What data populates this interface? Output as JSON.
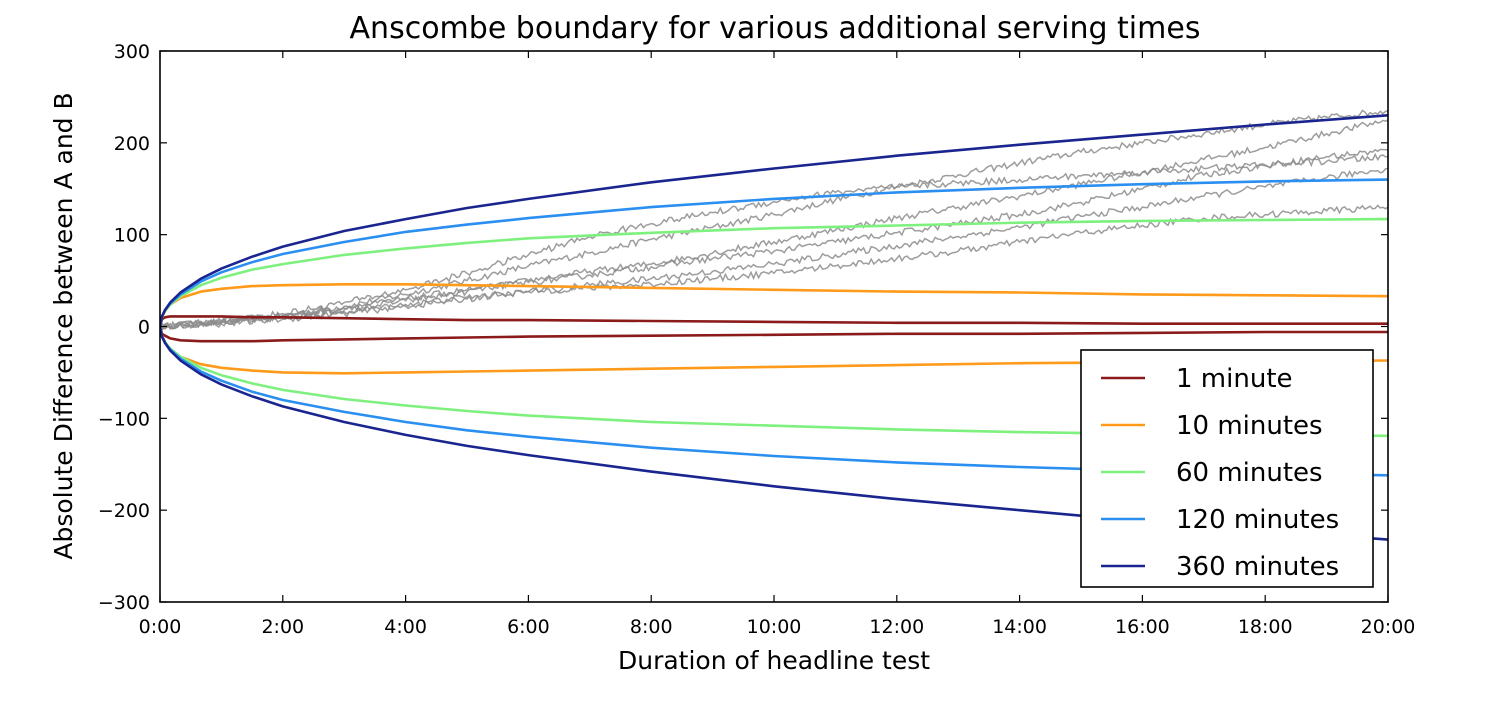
{
  "chart_data": {
    "type": "line",
    "title": "Anscombe boundary for various additional serving times",
    "xlabel": "Duration of headline test",
    "ylabel": "Absolute Difference between A and B",
    "x_unit": "minutes",
    "xlim": [
      0,
      1200
    ],
    "ylim": [
      -300,
      300
    ],
    "x_ticks": [
      0,
      120,
      240,
      360,
      480,
      600,
      720,
      840,
      960,
      1080,
      1200
    ],
    "x_tick_labels": [
      "0:00",
      "2:00",
      "4:00",
      "6:00",
      "8:00",
      "10:00",
      "12:00",
      "14:00",
      "16:00",
      "18:00",
      "20:00"
    ],
    "y_ticks": [
      -300,
      -200,
      -100,
      0,
      100,
      200,
      300
    ],
    "y_tick_labels": [
      "−300",
      "−200",
      "−100",
      "0",
      "100",
      "200",
      "300"
    ],
    "grid": false,
    "legend_position": "bottom-right",
    "x": [
      0,
      2,
      5,
      10,
      20,
      40,
      60,
      90,
      120,
      180,
      240,
      300,
      360,
      480,
      600,
      720,
      840,
      960,
      1080,
      1200
    ],
    "series": [
      {
        "name": "1 minute",
        "color": "#8b1a1a",
        "upper": [
          0,
          8,
          10,
          11,
          11,
          11,
          11,
          10,
          10,
          9,
          8,
          7,
          7,
          6,
          5,
          4,
          4,
          3,
          3,
          3
        ],
        "lower": [
          0,
          -8,
          -10,
          -13,
          -15,
          -16,
          -16,
          -16,
          -15,
          -14,
          -13,
          -12,
          -11,
          -10,
          -9,
          -8,
          -8,
          -7,
          -6,
          -6
        ]
      },
      {
        "name": "10 minutes",
        "color": "#ff9a1a",
        "upper": [
          0,
          10,
          17,
          24,
          31,
          38,
          41,
          44,
          45,
          46,
          46,
          45,
          44,
          42,
          40,
          38,
          37,
          35,
          34,
          33
        ],
        "lower": [
          0,
          -10,
          -17,
          -25,
          -33,
          -41,
          -45,
          -48,
          -50,
          -51,
          -50,
          -49,
          -48,
          -46,
          -44,
          -42,
          -40,
          -39,
          -38,
          -37
        ]
      },
      {
        "name": "60 minutes",
        "color": "#7ef07e",
        "upper": [
          0,
          11,
          17,
          24,
          33,
          45,
          53,
          62,
          68,
          78,
          85,
          91,
          96,
          102,
          107,
          110,
          113,
          115,
          116,
          117
        ],
        "lower": [
          0,
          -11,
          -17,
          -24,
          -33,
          -45,
          -53,
          -62,
          -69,
          -79,
          -86,
          -92,
          -97,
          -104,
          -108,
          -112,
          -115,
          -117,
          -118,
          -119
        ]
      },
      {
        "name": "120 minutes",
        "color": "#2a8ff0",
        "upper": [
          0,
          11,
          18,
          25,
          35,
          49,
          59,
          70,
          79,
          92,
          103,
          111,
          118,
          130,
          139,
          146,
          151,
          155,
          158,
          160
        ],
        "lower": [
          0,
          -11,
          -18,
          -25,
          -35,
          -49,
          -59,
          -71,
          -80,
          -93,
          -104,
          -113,
          -120,
          -132,
          -141,
          -148,
          -153,
          -157,
          -160,
          -162
        ]
      },
      {
        "name": "360 minutes",
        "color": "#1a2590",
        "upper": [
          0,
          11,
          18,
          26,
          37,
          52,
          63,
          76,
          87,
          104,
          117,
          129,
          139,
          157,
          172,
          186,
          198,
          209,
          220,
          230
        ],
        "lower": [
          0,
          -11,
          -18,
          -26,
          -37,
          -52,
          -63,
          -76,
          -87,
          -104,
          -118,
          -130,
          -140,
          -158,
          -174,
          -188,
          -200,
          -212,
          -222,
          -232
        ]
      }
    ],
    "random_walks": {
      "color": "#8c8c8c",
      "walks": [
        {
          "x": [
            0,
            60,
            120,
            180,
            240,
            300,
            360,
            420,
            480,
            540,
            600,
            660,
            720,
            780,
            840,
            900,
            960,
            1020,
            1080,
            1140,
            1200
          ],
          "y": [
            0,
            6,
            12,
            22,
            35,
            50,
            66,
            80,
            95,
            108,
            122,
            138,
            152,
            165,
            178,
            190,
            200,
            210,
            220,
            228,
            235
          ]
        },
        {
          "x": [
            0,
            60,
            120,
            180,
            240,
            300,
            360,
            420,
            480,
            540,
            600,
            660,
            720,
            780,
            840,
            900,
            960,
            1020,
            1080,
            1140,
            1200
          ],
          "y": [
            0,
            4,
            10,
            18,
            28,
            38,
            50,
            60,
            68,
            80,
            92,
            105,
            118,
            130,
            142,
            155,
            168,
            182,
            195,
            210,
            225
          ]
        },
        {
          "x": [
            0,
            60,
            120,
            180,
            240,
            300,
            360,
            420,
            480,
            540,
            600,
            660,
            720,
            780,
            840,
            900,
            960,
            1020,
            1080,
            1140,
            1200
          ],
          "y": [
            0,
            5,
            12,
            20,
            30,
            40,
            48,
            56,
            65,
            74,
            82,
            92,
            102,
            112,
            122,
            135,
            150,
            165,
            175,
            185,
            192
          ]
        },
        {
          "x": [
            0,
            60,
            120,
            180,
            240,
            300,
            360,
            420,
            480,
            540,
            600,
            660,
            720,
            780,
            840,
            900,
            960,
            1020,
            1080,
            1140,
            1200
          ],
          "y": [
            0,
            3,
            8,
            14,
            22,
            30,
            38,
            45,
            52,
            60,
            68,
            78,
            88,
            98,
            108,
            120,
            130,
            142,
            152,
            162,
            172
          ]
        },
        {
          "x": [
            0,
            60,
            120,
            180,
            240,
            300,
            360,
            420,
            480,
            540,
            600,
            660,
            720,
            780,
            840,
            900,
            960,
            1020,
            1080,
            1140,
            1200
          ],
          "y": [
            0,
            5,
            10,
            16,
            24,
            32,
            38,
            42,
            46,
            52,
            58,
            66,
            74,
            82,
            92,
            102,
            110,
            118,
            122,
            126,
            130
          ]
        },
        {
          "x": [
            0,
            60,
            120,
            180,
            240,
            300,
            360,
            420,
            480,
            540,
            600,
            660,
            720,
            780,
            840,
            900,
            960,
            1020,
            1080,
            1140,
            1200
          ],
          "y": [
            0,
            6,
            14,
            26,
            40,
            58,
            78,
            98,
            112,
            124,
            136,
            146,
            152,
            156,
            160,
            164,
            168,
            172,
            176,
            180,
            185
          ]
        }
      ]
    }
  }
}
